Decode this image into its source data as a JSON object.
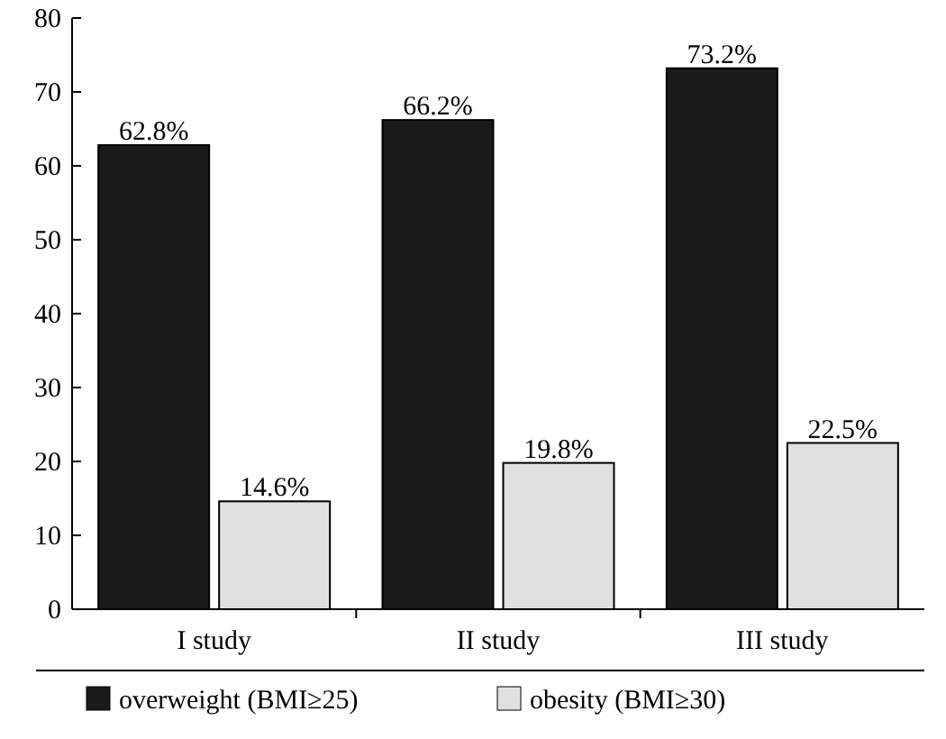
{
  "chart_data": {
    "type": "bar",
    "categories": [
      "I study",
      "II study",
      "III study"
    ],
    "series": [
      {
        "name": "overweight (BMI≥25)",
        "color": "#1a1a1a",
        "values": [
          62.8,
          66.2,
          73.2
        ],
        "value_labels": [
          "62.8%",
          "66.2%",
          "73.2%"
        ]
      },
      {
        "name": "obesity (BMI≥30)",
        "color": "#e0e0e0",
        "values": [
          14.6,
          19.8,
          22.5
        ],
        "value_labels": [
          "14.6%",
          "19.8%",
          "22.5%"
        ]
      }
    ],
    "ylim": [
      0,
      80
    ],
    "yticks": [
      0,
      10,
      20,
      30,
      40,
      50,
      60,
      70,
      80
    ],
    "grid": false,
    "legend": "bottom"
  }
}
